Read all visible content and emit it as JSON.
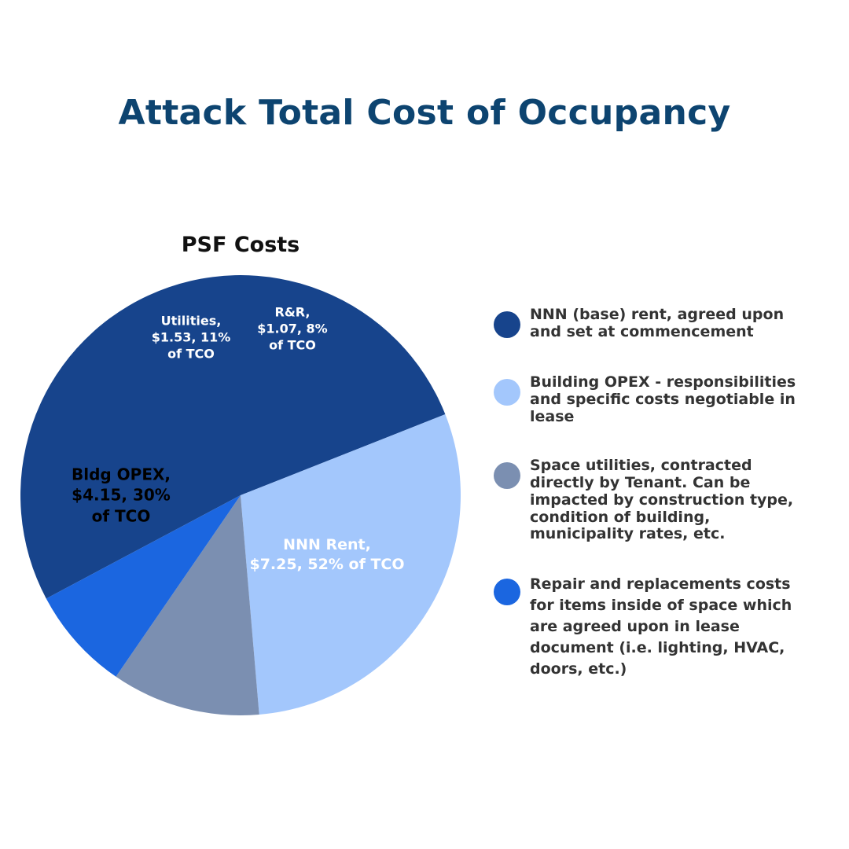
{
  "page_title": "Attack Total Cost of Occupancy",
  "chart_data": {
    "type": "pie",
    "title": "PSF Costs",
    "unit": "$",
    "slices": [
      {
        "key": "nnn",
        "label": "NNN Rent,\n$7.25, 52% of TCO",
        "value": 7.25,
        "percent": 52,
        "color": "#17448c",
        "label_color": "#ffffff"
      },
      {
        "key": "opex",
        "label": "Bldg OPEX,\n$4.15, 30%\nof TCO",
        "value": 4.15,
        "percent": 30,
        "color": "#a3c7fc",
        "label_color": "#000000"
      },
      {
        "key": "utilities",
        "label": "Utilities,\n$1.53, 11%\nof TCO",
        "value": 1.53,
        "percent": 11,
        "color": "#7b8fb1",
        "label_color": "#ffffff"
      },
      {
        "key": "rr",
        "label": "R&R,\n$1.07, 8%\nof TCO",
        "value": 1.07,
        "percent": 8,
        "color": "#1b66e0",
        "label_color": "#ffffff"
      }
    ]
  },
  "legend": [
    {
      "key": "nnn",
      "text": "NNN (base) rent, agreed upon and set at commencement",
      "color": "#17448c"
    },
    {
      "key": "opex",
      "text": "Building OPEX - responsibilities and specific costs negotiable in lease",
      "color": "#a3c7fc"
    },
    {
      "key": "utilities",
      "text": "Space utilities, contracted directly by Tenant. Can be impacted by construction type, condition of building, municipality rates, etc.",
      "color": "#7b8fb1"
    },
    {
      "key": "rr",
      "text": "Repair and replacements costs for items inside of space which are agreed upon in lease document (i.e. lighting, HVAC, doors, etc.)",
      "color": "#1b66e0"
    }
  ]
}
